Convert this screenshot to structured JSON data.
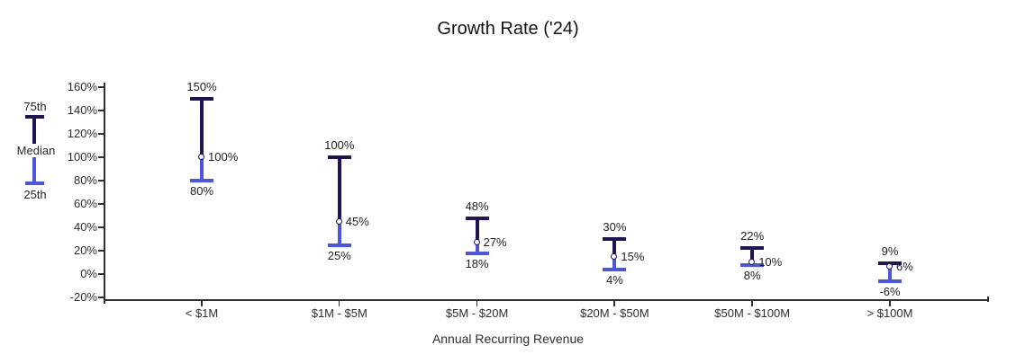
{
  "chart_data": {
    "type": "error-bar-range",
    "title": "Growth Rate ('24)",
    "xlabel": "Annual Recurring Revenue",
    "ylabel": "",
    "ylim": [
      -20,
      160
    ],
    "ytick_step": 20,
    "grid": false,
    "legend_position": "left",
    "yticks": [
      {
        "value": 160,
        "label": "160%"
      },
      {
        "value": 140,
        "label": "140%"
      },
      {
        "value": 120,
        "label": "120%"
      },
      {
        "value": 100,
        "label": "100%"
      },
      {
        "value": 80,
        "label": "80%"
      },
      {
        "value": 60,
        "label": "60%"
      },
      {
        "value": 40,
        "label": "40%"
      },
      {
        "value": 20,
        "label": "20%"
      },
      {
        "value": 0,
        "label": "0%"
      },
      {
        "value": -20,
        "label": "-20%"
      }
    ],
    "categories": [
      "< $1M",
      "$1M - $5M",
      "$5M - $20M",
      "$20M - $50M",
      "$50M - $100M",
      "> $100M"
    ],
    "series": [
      {
        "category": "< $1M",
        "p75": 150,
        "median": 100,
        "p25": 80,
        "p75_label": "150%",
        "median_label": "100%",
        "p25_label": "80%"
      },
      {
        "category": "$1M - $5M",
        "p75": 100,
        "median": 45,
        "p25": 25,
        "p75_label": "100%",
        "median_label": "45%",
        "p25_label": "25%"
      },
      {
        "category": "$5M - $20M",
        "p75": 48,
        "median": 27,
        "p25": 18,
        "p75_label": "48%",
        "median_label": "27%",
        "p25_label": "18%"
      },
      {
        "category": "$20M - $50M",
        "p75": 30,
        "median": 15,
        "p25": 4,
        "p75_label": "30%",
        "median_label": "15%",
        "p25_label": "4%"
      },
      {
        "category": "$50M - $100M",
        "p75": 22,
        "median": 10,
        "p25": 8,
        "p75_label": "22%",
        "median_label": "10%",
        "p25_label": "8%"
      },
      {
        "category": "> $100M",
        "p75": 9,
        "median": 6,
        "p25": -6,
        "p75_label": "9%",
        "median_label": "6%",
        "p25_label": "-6%"
      }
    ],
    "legend": {
      "top": "75th",
      "mid": "Median",
      "bottom": "25th"
    },
    "colors": {
      "upper_segment": "#201457",
      "lower_segment": "#4a55e0",
      "marker_fill": "#ffffff",
      "axis": "#2f2f2f",
      "text": "#1f1f1f"
    }
  }
}
